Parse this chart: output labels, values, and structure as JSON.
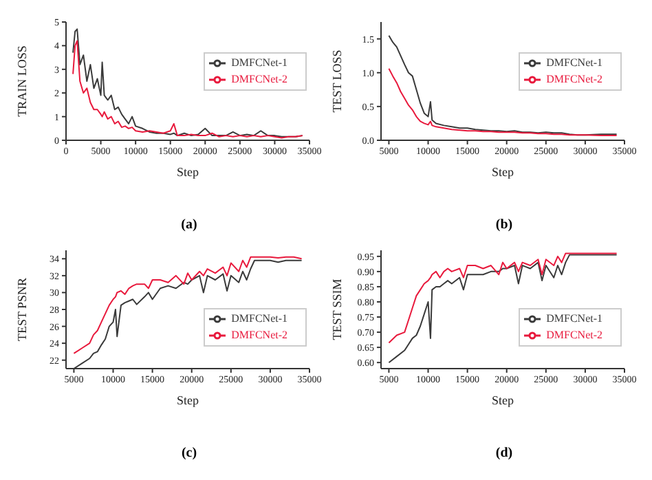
{
  "chart_data": [
    {
      "type": "line",
      "title": "(a)",
      "xlabel": "Step",
      "ylabel": "TRAIN LOSS",
      "xlim": [
        0,
        35000
      ],
      "xticks": [
        0,
        5000,
        10000,
        15000,
        20000,
        25000,
        30000,
        35000
      ],
      "ylim": [
        0,
        5
      ],
      "yticks": [
        0,
        1,
        2,
        3,
        4,
        5
      ],
      "grid": false,
      "legend": "top right",
      "marker": "none",
      "line_style": "solid",
      "x": [
        1000,
        1300,
        1600,
        2000,
        2500,
        3000,
        3500,
        4000,
        4500,
        5000,
        5200,
        5500,
        6000,
        6500,
        7000,
        7500,
        8000,
        8500,
        9000,
        9500,
        10000,
        11000,
        12000,
        13000,
        14000,
        15000,
        15500,
        16000,
        17000,
        18000,
        19000,
        20000,
        21000,
        22000,
        23000,
        24000,
        25000,
        26000,
        27000,
        28000,
        29000,
        30000,
        31000,
        32000,
        33000,
        34000
      ],
      "series": [
        {
          "name": "DMFCNet-1",
          "color": "#3a3a3a",
          "values": [
            3.7,
            4.6,
            4.7,
            3.2,
            3.6,
            2.5,
            3.2,
            2.2,
            2.6,
            1.9,
            3.3,
            1.9,
            1.7,
            1.9,
            1.3,
            1.4,
            1.1,
            0.9,
            0.7,
            1.0,
            0.6,
            0.5,
            0.35,
            0.3,
            0.3,
            0.25,
            0.3,
            0.2,
            0.3,
            0.2,
            0.25,
            0.5,
            0.2,
            0.2,
            0.2,
            0.35,
            0.2,
            0.25,
            0.2,
            0.4,
            0.2,
            0.2,
            0.15,
            0.15,
            0.15,
            0.2
          ]
        },
        {
          "name": "DMFCNet-2",
          "color": "#e8193c",
          "values": [
            2.8,
            4.0,
            4.2,
            2.5,
            2.0,
            2.2,
            1.6,
            1.3,
            1.3,
            1.1,
            1.0,
            1.2,
            0.9,
            1.0,
            0.7,
            0.8,
            0.55,
            0.6,
            0.5,
            0.55,
            0.4,
            0.35,
            0.4,
            0.35,
            0.3,
            0.4,
            0.7,
            0.2,
            0.2,
            0.25,
            0.2,
            0.2,
            0.3,
            0.15,
            0.2,
            0.15,
            0.2,
            0.15,
            0.2,
            0.15,
            0.2,
            0.15,
            0.1,
            0.15,
            0.15,
            0.2
          ]
        }
      ]
    },
    {
      "type": "line",
      "title": "(b)",
      "xlabel": "Step",
      "ylabel": "TEST LOSS",
      "xlim": [
        4000,
        35000
      ],
      "xticks": [
        5000,
        10000,
        15000,
        20000,
        25000,
        30000,
        35000
      ],
      "ylim": [
        0,
        1.75
      ],
      "yticks": [
        {
          "value": 0,
          "label": "0.0"
        },
        0.5,
        {
          "value": 1,
          "label": "1.0"
        },
        1.5
      ],
      "grid": false,
      "legend": "top right",
      "marker": "none",
      "line_style": "solid",
      "x": [
        5000,
        5500,
        6000,
        6500,
        7000,
        7500,
        8000,
        8500,
        9000,
        9500,
        10000,
        10300,
        10500,
        11000,
        12000,
        13000,
        14000,
        15000,
        16000,
        17000,
        18000,
        19000,
        20000,
        21000,
        22000,
        23000,
        24000,
        25000,
        26000,
        27000,
        28000,
        29000,
        30000,
        32000,
        34000
      ],
      "series": [
        {
          "name": "DMFCNet-1",
          "color": "#3a3a3a",
          "values": [
            1.55,
            1.45,
            1.38,
            1.25,
            1.12,
            1.0,
            0.95,
            0.75,
            0.55,
            0.4,
            0.35,
            0.57,
            0.3,
            0.25,
            0.22,
            0.2,
            0.18,
            0.18,
            0.16,
            0.15,
            0.14,
            0.14,
            0.13,
            0.14,
            0.12,
            0.12,
            0.11,
            0.12,
            0.11,
            0.11,
            0.09,
            0.08,
            0.08,
            0.09,
            0.09
          ]
        },
        {
          "name": "DMFCNet-2",
          "color": "#e8193c",
          "values": [
            1.06,
            0.95,
            0.85,
            0.72,
            0.62,
            0.52,
            0.45,
            0.35,
            0.28,
            0.25,
            0.23,
            0.28,
            0.22,
            0.2,
            0.18,
            0.16,
            0.15,
            0.14,
            0.14,
            0.13,
            0.13,
            0.12,
            0.12,
            0.12,
            0.11,
            0.11,
            0.1,
            0.1,
            0.09,
            0.09,
            0.08,
            0.08,
            0.08,
            0.07,
            0.07
          ]
        }
      ]
    },
    {
      "type": "line",
      "title": "(c)",
      "xlabel": "Step",
      "ylabel": "TEST PSNR",
      "xlim": [
        4000,
        35000
      ],
      "xticks": [
        5000,
        10000,
        15000,
        20000,
        25000,
        30000,
        35000
      ],
      "ylim": [
        21,
        35
      ],
      "yticks": [
        22,
        24,
        26,
        28,
        30,
        32,
        34
      ],
      "grid": false,
      "legend": "bottom right",
      "marker": "none",
      "line_style": "solid",
      "x": [
        5000,
        6000,
        7000,
        7500,
        8000,
        8500,
        9000,
        9500,
        10000,
        10300,
        10500,
        11000,
        11500,
        12000,
        12500,
        13000,
        14000,
        14500,
        15000,
        16000,
        17000,
        18000,
        19000,
        19500,
        20000,
        21000,
        21500,
        22000,
        23000,
        24000,
        24500,
        25000,
        26000,
        26500,
        27000,
        27500,
        28000,
        29000,
        30000,
        31000,
        32000,
        33000,
        34000
      ],
      "series": [
        {
          "name": "DMFCNet-1",
          "color": "#3a3a3a",
          "values": [
            21.0,
            21.6,
            22.2,
            22.8,
            23.0,
            23.8,
            24.5,
            26.0,
            26.5,
            28.0,
            24.8,
            28.5,
            28.8,
            29.0,
            29.2,
            28.6,
            29.5,
            30.0,
            29.2,
            30.5,
            30.8,
            30.5,
            31.2,
            31.0,
            31.5,
            32.0,
            30.0,
            32.0,
            31.5,
            32.2,
            30.2,
            32.0,
            31.2,
            32.5,
            31.5,
            32.8,
            33.8,
            33.8,
            33.8,
            33.6,
            33.8,
            33.8,
            33.8
          ]
        },
        {
          "name": "DMFCNet-2",
          "color": "#e8193c",
          "values": [
            22.8,
            23.4,
            24.0,
            25.0,
            25.5,
            26.5,
            27.5,
            28.5,
            29.2,
            29.5,
            30.0,
            30.2,
            29.8,
            30.5,
            30.8,
            31.0,
            31.0,
            30.5,
            31.5,
            31.5,
            31.2,
            32.0,
            31.0,
            32.3,
            31.5,
            32.5,
            32.0,
            32.8,
            32.3,
            33.0,
            32.0,
            33.5,
            32.5,
            33.8,
            33.0,
            34.2,
            34.2,
            34.2,
            34.2,
            34.1,
            34.2,
            34.2,
            34.0
          ]
        }
      ]
    },
    {
      "type": "line",
      "title": "(d)",
      "xlabel": "Step",
      "ylabel": "TEST SSIM",
      "xlim": [
        4000,
        35000
      ],
      "xticks": [
        5000,
        10000,
        15000,
        20000,
        25000,
        30000,
        35000
      ],
      "ylim": [
        0.58,
        0.97
      ],
      "yticks": [
        {
          "value": 0.6,
          "label": "0.60"
        },
        0.65,
        {
          "value": 0.7,
          "label": "0.70"
        },
        0.75,
        {
          "value": 0.8,
          "label": "0.80"
        },
        0.85,
        {
          "value": 0.9,
          "label": "0.90"
        },
        0.95
      ],
      "grid": false,
      "legend": "bottom right",
      "marker": "none",
      "line_style": "solid",
      "x": [
        5000,
        6000,
        7000,
        7500,
        8000,
        8500,
        9000,
        9500,
        10000,
        10300,
        10500,
        11000,
        11500,
        12000,
        12500,
        13000,
        14000,
        14500,
        15000,
        16000,
        17000,
        18000,
        19000,
        19500,
        20000,
        21000,
        21500,
        22000,
        23000,
        24000,
        24500,
        25000,
        26000,
        26500,
        27000,
        27500,
        28000,
        29000,
        30000,
        31000,
        32000,
        33000,
        34000
      ],
      "series": [
        {
          "name": "DMFCNet-1",
          "color": "#3a3a3a",
          "values": [
            0.6,
            0.62,
            0.64,
            0.66,
            0.68,
            0.69,
            0.72,
            0.76,
            0.8,
            0.68,
            0.84,
            0.85,
            0.85,
            0.86,
            0.87,
            0.86,
            0.88,
            0.84,
            0.89,
            0.89,
            0.89,
            0.9,
            0.9,
            0.91,
            0.91,
            0.92,
            0.86,
            0.92,
            0.91,
            0.93,
            0.87,
            0.92,
            0.88,
            0.92,
            0.89,
            0.93,
            0.955,
            0.955,
            0.955,
            0.955,
            0.955,
            0.955,
            0.955
          ]
        },
        {
          "name": "DMFCNet-2",
          "color": "#e8193c",
          "values": [
            0.665,
            0.69,
            0.7,
            0.74,
            0.78,
            0.82,
            0.84,
            0.86,
            0.87,
            0.88,
            0.89,
            0.9,
            0.88,
            0.9,
            0.91,
            0.9,
            0.91,
            0.88,
            0.92,
            0.92,
            0.91,
            0.92,
            0.89,
            0.93,
            0.91,
            0.93,
            0.9,
            0.93,
            0.92,
            0.94,
            0.89,
            0.94,
            0.92,
            0.95,
            0.93,
            0.96,
            0.96,
            0.96,
            0.96,
            0.96,
            0.96,
            0.96,
            0.96
          ]
        }
      ]
    }
  ]
}
